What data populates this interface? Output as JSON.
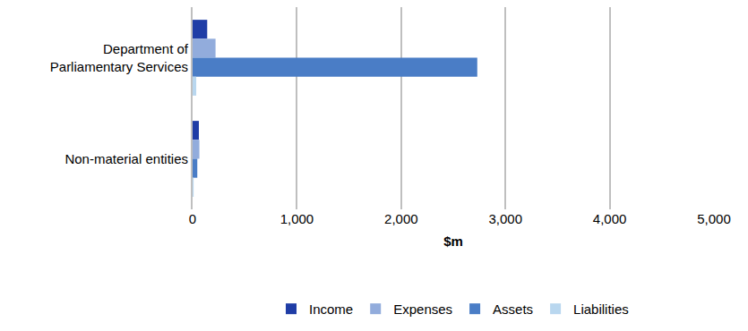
{
  "chart_data": {
    "type": "bar",
    "orientation": "horizontal",
    "categories": [
      "Department of Parliamentary Services",
      "Non-material entities"
    ],
    "series": [
      {
        "name": "Income",
        "color": "#1f3da6",
        "values": [
          140,
          60
        ]
      },
      {
        "name": "Expenses",
        "color": "#92acdc",
        "values": [
          220,
          65
        ]
      },
      {
        "name": "Assets",
        "color": "#4a7dc6",
        "values": [
          2730,
          45
        ]
      },
      {
        "name": "Liabilities",
        "color": "#b9d7ef",
        "values": [
          35,
          10
        ]
      }
    ],
    "x_label": "$m",
    "xlim": [
      0,
      5000
    ],
    "xticks": [
      0,
      {
        "value": 1000,
        "label": "1,000"
      },
      {
        "value": 2000,
        "label": "2,000"
      },
      {
        "value": 3000,
        "label": "3,000"
      },
      {
        "value": 4000,
        "label": "4,000"
      },
      {
        "value": 5000,
        "label": "5,000"
      }
    ],
    "grid": true,
    "legend": "bottom"
  }
}
